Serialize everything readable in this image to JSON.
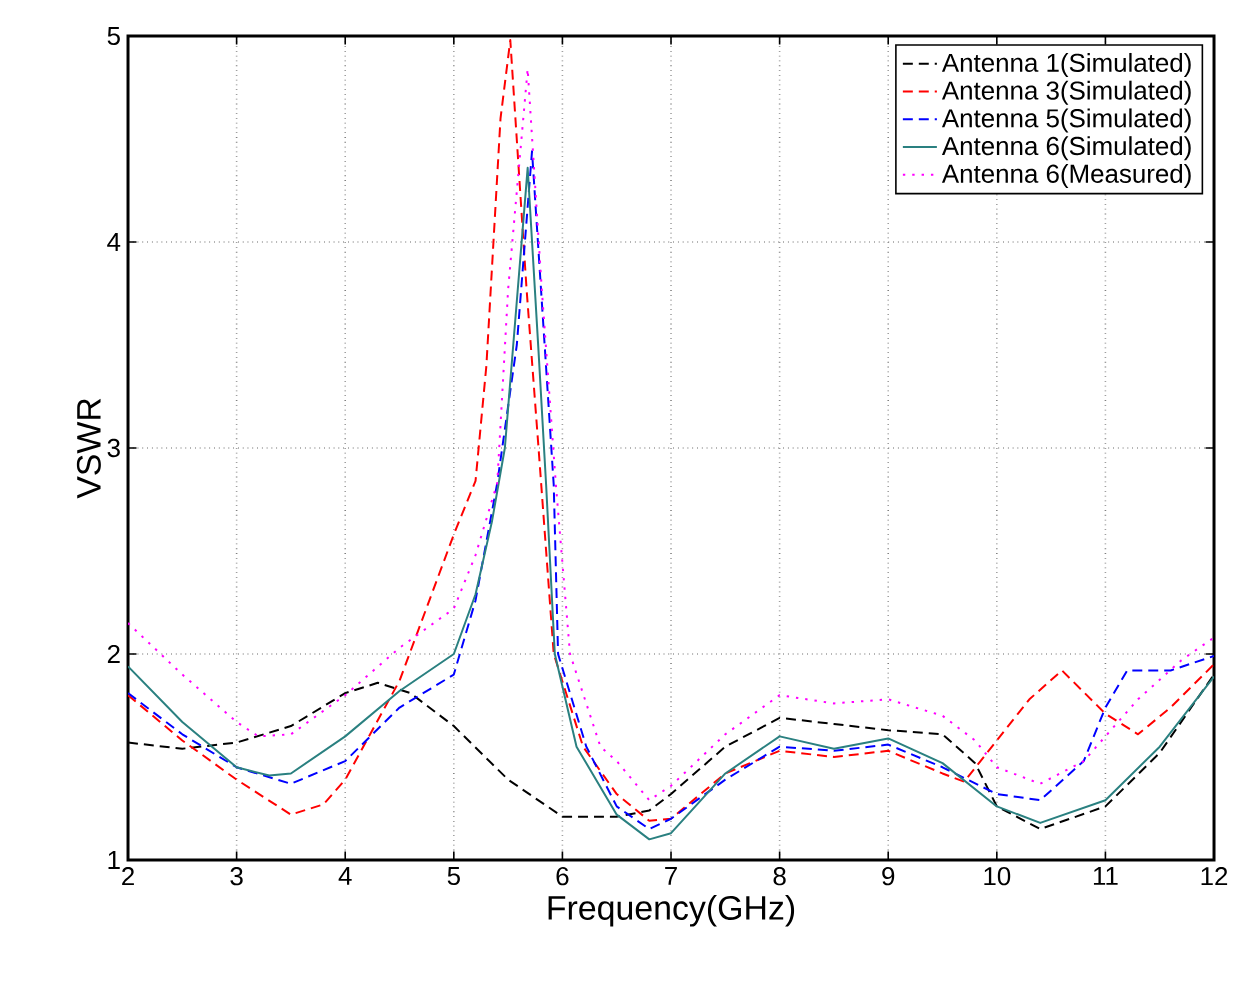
{
  "chart_data": {
    "type": "line",
    "xlabel": "Frequency(GHz)",
    "ylabel": "VSWR",
    "xlim": [
      2,
      12
    ],
    "ylim": [
      1,
      5
    ],
    "xticks": [
      2,
      3,
      4,
      5,
      6,
      7,
      8,
      9,
      10,
      11,
      12
    ],
    "yticks": [
      1,
      2,
      3,
      4,
      5
    ],
    "grid": true,
    "legend": "top right",
    "series": [
      {
        "name": "Antenna 1(Simulated)",
        "color": "#000000",
        "line_style": "dashed",
        "x": [
          2,
          2.5,
          3,
          3.5,
          4,
          4.3,
          4.6,
          5,
          5.5,
          6,
          6.5,
          6.8,
          7,
          7.5,
          8,
          8.5,
          9,
          9.5,
          9.8,
          10,
          10.4,
          11,
          11.5,
          12
        ],
        "values": [
          1.57,
          1.54,
          1.57,
          1.65,
          1.81,
          1.86,
          1.81,
          1.65,
          1.39,
          1.21,
          1.21,
          1.24,
          1.32,
          1.55,
          1.69,
          1.66,
          1.63,
          1.61,
          1.47,
          1.26,
          1.15,
          1.26,
          1.52,
          1.9
        ]
      },
      {
        "name": "Antenna 3(Simulated)",
        "color": "#ff0000",
        "line_style": "dashed",
        "x": [
          2,
          2.5,
          3,
          3.5,
          3.8,
          4,
          4.5,
          5,
          5.2,
          5.3,
          5.43,
          5.52,
          5.67,
          5.78,
          5.92,
          6.19,
          6.5,
          6.8,
          7,
          7.5,
          8,
          8.5,
          9,
          9.5,
          9.7,
          10,
          10.3,
          10.6,
          11,
          11.3,
          11.6,
          12
        ],
        "values": [
          1.8,
          1.58,
          1.39,
          1.22,
          1.27,
          1.39,
          1.87,
          2.58,
          2.84,
          3.4,
          4.6,
          4.98,
          3.77,
          3.0,
          2.0,
          1.55,
          1.32,
          1.19,
          1.2,
          1.42,
          1.53,
          1.5,
          1.53,
          1.42,
          1.38,
          1.58,
          1.78,
          1.92,
          1.71,
          1.61,
          1.74,
          1.95
        ]
      },
      {
        "name": "Antenna 5(Simulated)",
        "color": "#0000ff",
        "line_style": "dashed",
        "x": [
          2,
          2.5,
          3,
          3.5,
          4,
          4.5,
          5,
          5.2,
          5.4,
          5.58,
          5.72,
          5.84,
          5.92,
          5.96,
          6.22,
          6.5,
          6.8,
          7,
          7.5,
          8,
          8.5,
          9,
          9.5,
          10,
          10.4,
          10.8,
          11,
          11.2,
          11.6,
          12
        ],
        "values": [
          1.81,
          1.61,
          1.45,
          1.37,
          1.48,
          1.74,
          1.9,
          2.26,
          2.83,
          3.5,
          4.44,
          3.47,
          2.82,
          2.0,
          1.55,
          1.26,
          1.15,
          1.2,
          1.39,
          1.55,
          1.53,
          1.56,
          1.45,
          1.32,
          1.29,
          1.48,
          1.74,
          1.92,
          1.92,
          1.99
        ]
      },
      {
        "name": "Antenna 6(Simulated)",
        "color": "#2a8080",
        "line_style": "solid",
        "x": [
          2,
          2.5,
          3,
          3.3,
          3.5,
          4,
          4.5,
          5,
          5.2,
          5.35,
          5.47,
          5.68,
          5.78,
          5.85,
          5.93,
          6.13,
          6.5,
          6.8,
          7,
          7.5,
          8,
          8.5,
          9,
          9.5,
          10,
          10.4,
          11,
          11.5,
          12
        ],
        "values": [
          1.94,
          1.67,
          1.45,
          1.41,
          1.42,
          1.6,
          1.82,
          2.0,
          2.29,
          2.64,
          3.0,
          4.36,
          3.47,
          2.82,
          2.0,
          1.55,
          1.22,
          1.1,
          1.13,
          1.42,
          1.6,
          1.54,
          1.59,
          1.47,
          1.26,
          1.18,
          1.29,
          1.55,
          1.89
        ]
      },
      {
        "name": "Antenna 6(Measured)",
        "color": "#ff00ff",
        "line_style": "dotted",
        "x": [
          2,
          2.5,
          3,
          3.2,
          3.5,
          4,
          4.5,
          5,
          5.2,
          5.4,
          5.5,
          5.68,
          5.81,
          5.94,
          6.07,
          6.35,
          6.5,
          6.8,
          7,
          7.5,
          8,
          8.5,
          9,
          9.5,
          9.8,
          10,
          10.4,
          10.8,
          11,
          11.3,
          11.7,
          12
        ],
        "values": [
          2.15,
          1.9,
          1.67,
          1.6,
          1.61,
          1.8,
          2.03,
          2.22,
          2.48,
          2.83,
          3.77,
          4.84,
          3.77,
          2.82,
          2.0,
          1.55,
          1.48,
          1.29,
          1.36,
          1.61,
          1.8,
          1.76,
          1.78,
          1.7,
          1.58,
          1.45,
          1.37,
          1.48,
          1.6,
          1.78,
          1.97,
          2.08
        ]
      }
    ]
  }
}
